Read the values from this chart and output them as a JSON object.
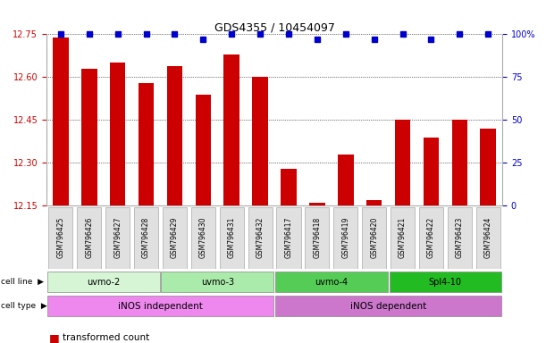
{
  "title": "GDS4355 / 10454097",
  "samples": [
    "GSM796425",
    "GSM796426",
    "GSM796427",
    "GSM796428",
    "GSM796429",
    "GSM796430",
    "GSM796431",
    "GSM796432",
    "GSM796417",
    "GSM796418",
    "GSM796419",
    "GSM796420",
    "GSM796421",
    "GSM796422",
    "GSM796423",
    "GSM796424"
  ],
  "transformed_counts": [
    12.74,
    12.63,
    12.65,
    12.58,
    12.64,
    12.54,
    12.68,
    12.6,
    12.28,
    12.16,
    12.33,
    12.17,
    12.45,
    12.39,
    12.45,
    12.42
  ],
  "percentile_ranks": [
    100,
    100,
    100,
    100,
    100,
    97,
    100,
    100,
    100,
    97,
    100,
    97,
    100,
    97,
    100,
    100
  ],
  "ylim_left": [
    12.15,
    12.75
  ],
  "ylim_right": [
    0,
    100
  ],
  "yticks_left": [
    12.15,
    12.3,
    12.45,
    12.6,
    12.75
  ],
  "yticks_right": [
    0,
    25,
    50,
    75,
    100
  ],
  "cell_lines": [
    {
      "label": "uvmo-2",
      "start": 0,
      "end": 4,
      "color": "#d5f5d5"
    },
    {
      "label": "uvmo-3",
      "start": 4,
      "end": 8,
      "color": "#aaeaaa"
    },
    {
      "label": "uvmo-4",
      "start": 8,
      "end": 12,
      "color": "#55cc55"
    },
    {
      "label": "Spl4-10",
      "start": 12,
      "end": 16,
      "color": "#22bb22"
    }
  ],
  "cell_types": [
    {
      "label": "iNOS independent",
      "start": 0,
      "end": 8,
      "color": "#ee88ee"
    },
    {
      "label": "iNOS dependent",
      "start": 8,
      "end": 16,
      "color": "#cc77cc"
    }
  ],
  "bar_color": "#cc0000",
  "dot_color": "#0000cc",
  "bar_width": 0.55,
  "background_color": "#ffffff",
  "tick_label_color_left": "#cc0000",
  "tick_label_color_right": "#0000cc"
}
